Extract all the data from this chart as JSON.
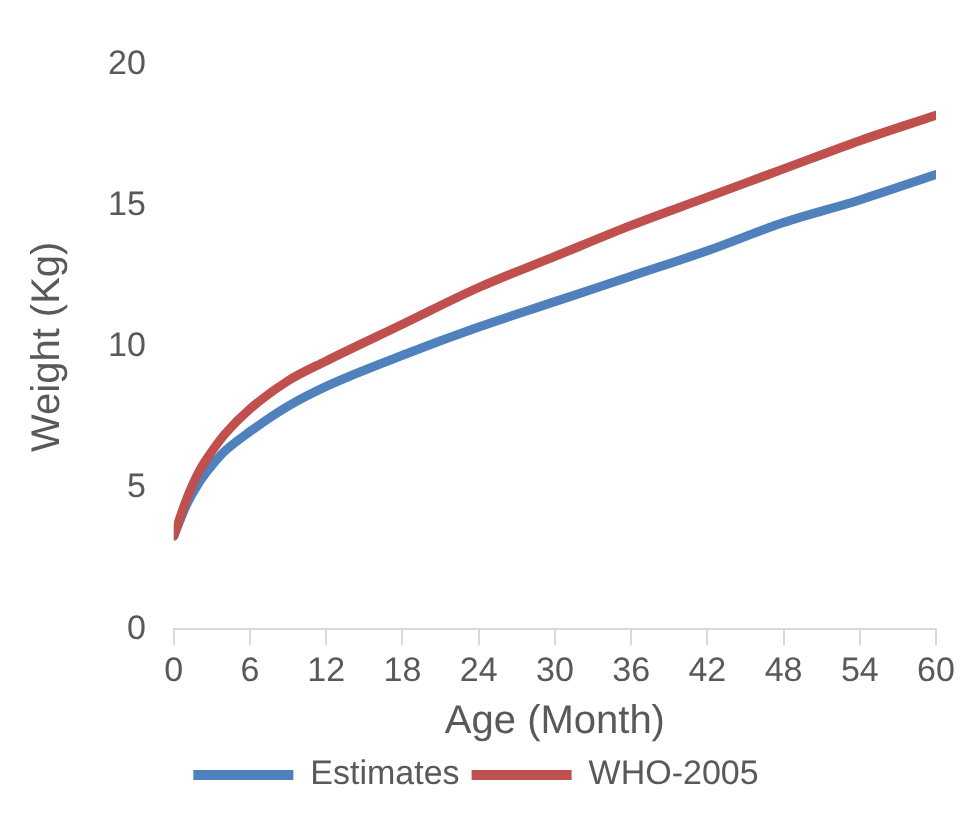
{
  "chart_data": {
    "type": "line",
    "xlabel": "Age (Month)",
    "ylabel": "Weight (Kg)",
    "x": [
      0,
      1,
      2,
      3,
      4,
      6,
      9,
      12,
      18,
      24,
      30,
      36,
      42,
      48,
      54,
      60
    ],
    "series": [
      {
        "name": "Estimates",
        "color": "#4f81bd",
        "values": [
          3.3,
          4.4,
          5.2,
          5.8,
          6.3,
          7.0,
          7.9,
          8.6,
          9.7,
          10.7,
          11.6,
          12.5,
          13.4,
          14.4,
          15.2,
          16.1
        ]
      },
      {
        "name": "WHO-2005",
        "color": "#c0504d",
        "values": [
          3.3,
          4.6,
          5.6,
          6.3,
          6.9,
          7.8,
          8.8,
          9.5,
          10.8,
          12.1,
          13.2,
          14.3,
          15.3,
          16.3,
          17.3,
          18.2
        ]
      }
    ],
    "xlim": [
      0,
      60
    ],
    "xticks": [
      0,
      6,
      12,
      18,
      24,
      30,
      36,
      42,
      48,
      54,
      60
    ],
    "ylim": [
      0,
      20
    ],
    "yticks": [
      0,
      5,
      10,
      15,
      20
    ],
    "grid": false,
    "legend": "bottom",
    "marker": "none",
    "line_style": "solid"
  }
}
